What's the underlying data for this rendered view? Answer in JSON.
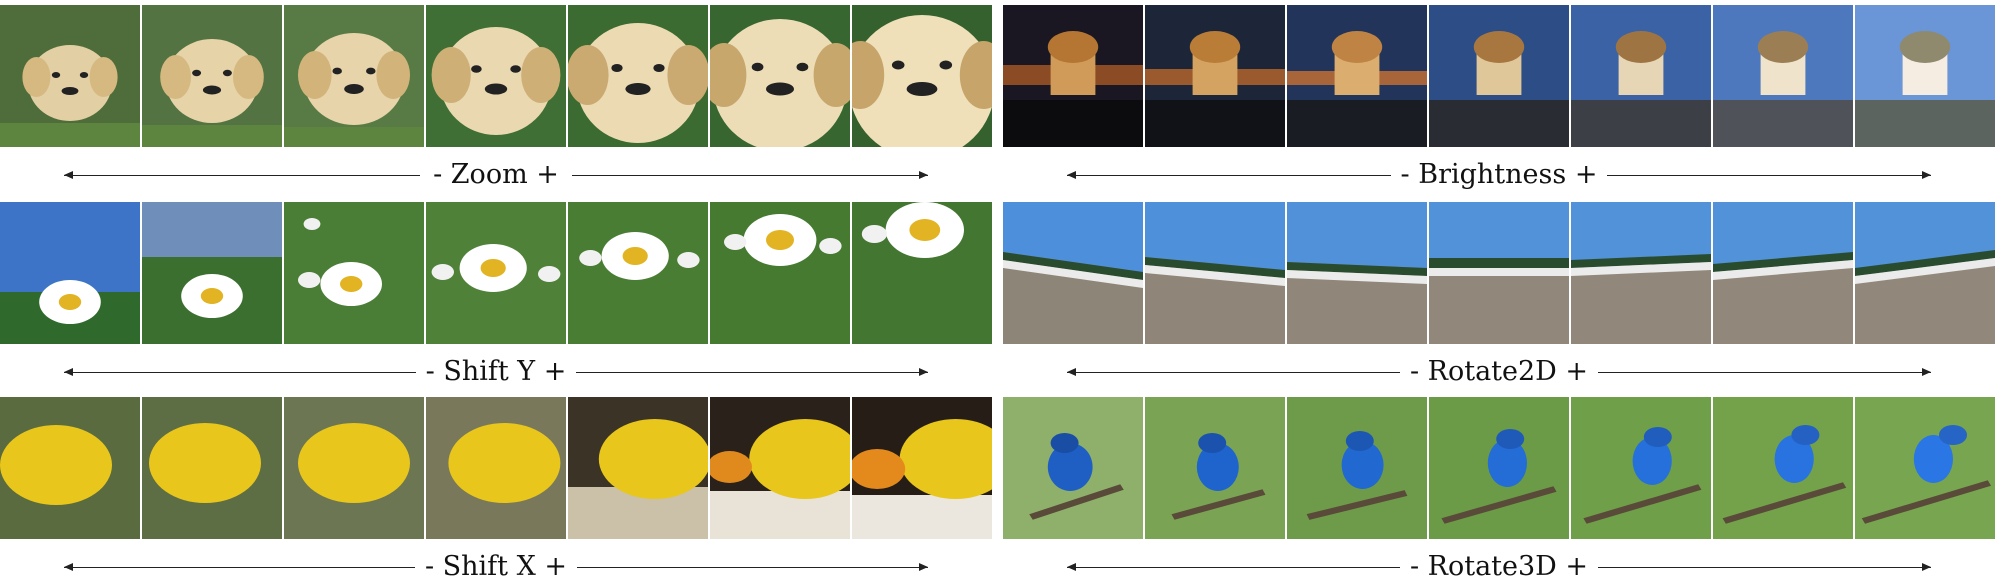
{
  "panels": [
    {
      "label": "- Zoom +",
      "subject": "golden retriever puppy on grass",
      "frames": 7
    },
    {
      "label": "- Brightness +",
      "subject": "domed building at dusk to day",
      "frames": 7
    },
    {
      "label": "- Shift Y +",
      "subject": "daisy flowers in green field",
      "frames": 7
    },
    {
      "label": "- Rotate2D +",
      "subject": "beach shoreline with tree line",
      "frames": 7
    },
    {
      "label": "- Shift X +",
      "subject": "yellow lemon",
      "frames": 7
    },
    {
      "label": "- Rotate3D +",
      "subject": "blue bird on branch",
      "frames": 7
    }
  ],
  "colors": {
    "arrow": "#222222",
    "text": "#111111",
    "background": "#ffffff"
  }
}
